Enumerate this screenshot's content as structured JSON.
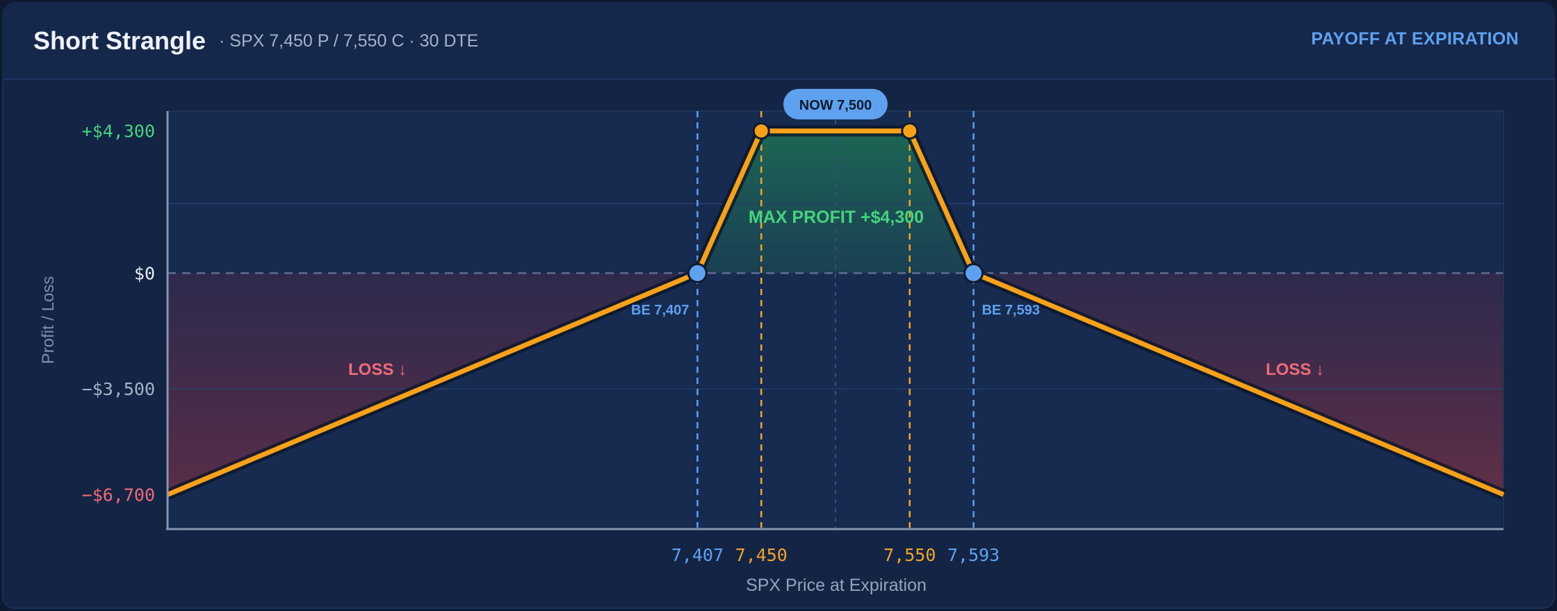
{
  "header": {
    "title": "Short Strangle",
    "subtitle": "· SPX 7,450 P / 7,550 C · 30 DTE",
    "mode_label": "PAYOFF AT EXPIRATION"
  },
  "chart_data": {
    "type": "line",
    "x": [
      7050,
      7407,
      7450,
      7550,
      7593,
      7950
    ],
    "y": [
      -6700,
      0,
      4300,
      4300,
      0,
      -6700
    ],
    "xlabel": "SPX Price at Expiration",
    "ylabel": "Profit / Loss",
    "xlim": [
      7050,
      7950
    ],
    "ylim": [
      -7700,
      4900
    ],
    "x_ticks": [
      {
        "value": 7407,
        "label": "7,407",
        "kind": "breakeven"
      },
      {
        "value": 7450,
        "label": "7,450",
        "kind": "strike"
      },
      {
        "value": 7550,
        "label": "7,550",
        "kind": "strike"
      },
      {
        "value": 7593,
        "label": "7,593",
        "kind": "breakeven"
      }
    ],
    "y_ticks": [
      {
        "value": 4300,
        "label": "+$4,300",
        "kind": "profit"
      },
      {
        "value": 0,
        "label": "$0",
        "kind": "zero"
      },
      {
        "value": -3500,
        "label": "−$3,500",
        "kind": "neutral"
      },
      {
        "value": -6700,
        "label": "−$6,700",
        "kind": "loss"
      }
    ],
    "strikes": [
      7450,
      7550
    ],
    "breakevens": [
      {
        "value": 7407,
        "label": "BE 7,407"
      },
      {
        "value": 7593,
        "label": "BE 7,593"
      }
    ],
    "current_price": {
      "value": 7500,
      "label": "NOW 7,500"
    },
    "annotations": {
      "max_profit": {
        "label": "MAX PROFIT",
        "value": "+$4,300"
      },
      "loss_left": "LOSS ↓",
      "loss_right": "LOSS ↓"
    },
    "colors": {
      "payoff": "#f7a11a",
      "strike": "#f0a52a",
      "breakeven": "#5ea2ef",
      "profit": "#47d37d",
      "loss": "#f06b78",
      "axis_text": "#a5b3c8"
    }
  }
}
